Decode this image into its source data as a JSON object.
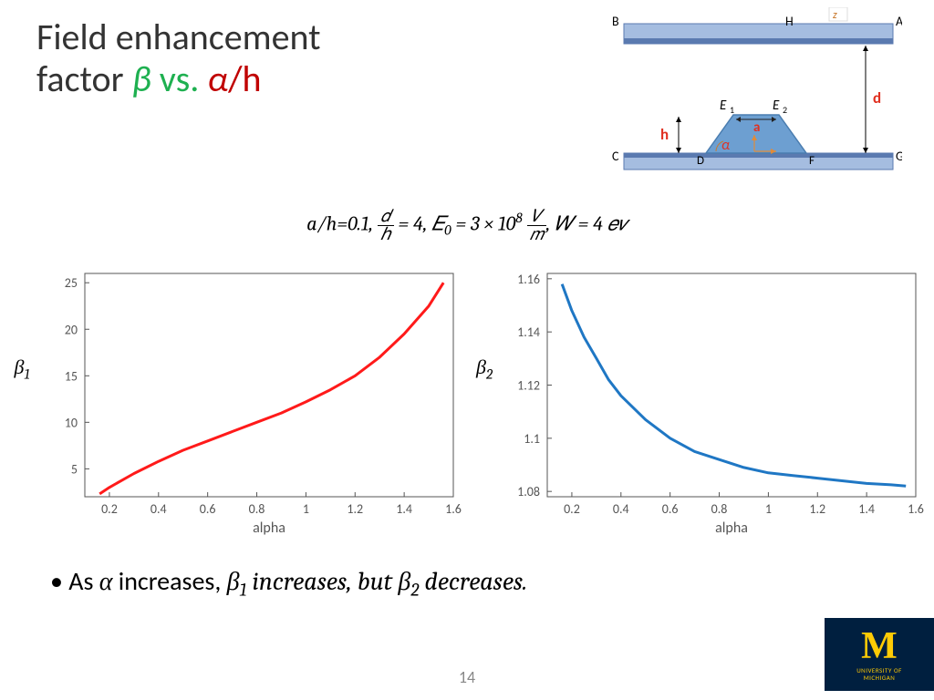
{
  "title": {
    "line1": "Field enhancement",
    "line2_factor": "factor",
    "beta": "β",
    "vs": " vs.",
    "alpha": "α",
    "slash_h": "/h"
  },
  "params_text": "a/h=0.1, d/h = 4, E₀ = 3 × 10⁸ V/m, W = 4 eV",
  "diagram": {
    "labels": {
      "A": "A",
      "B": "B",
      "C": "C",
      "D": "D",
      "F": "F",
      "G": "G",
      "H": "H",
      "E1": "E",
      "E2": "E",
      "h": "h",
      "d": "d",
      "a": "a",
      "alpha": "α"
    },
    "colors": {
      "bar_fill": "#a5bde0",
      "bar_stroke": "#5a7ab0",
      "electrode_fill": "#a5bde0",
      "electrode_stroke": "#5a7ab0",
      "protrusion_fill": "#6d9fd1",
      "protrusion_stroke": "#4a7db0",
      "red_text": "#e03020",
      "label_text": "#000000"
    }
  },
  "chart_left": {
    "type": "line",
    "ylabel_sym": "β",
    "ylabel_sub": "1",
    "xlabel": "alpha",
    "line_color": "#ff1a1a",
    "line_width": 3,
    "border_color": "#555555",
    "bg_color": "#ffffff",
    "tick_color": "#555555",
    "tick_fontsize": 14,
    "label_fontsize": 16,
    "xlim": [
      0.1,
      1.6
    ],
    "ylim": [
      2,
      26
    ],
    "xticks": [
      0.2,
      0.4,
      0.6,
      0.8,
      1.0,
      1.2,
      1.4,
      1.6
    ],
    "yticks": [
      5,
      10,
      15,
      20,
      25
    ],
    "data_x": [
      0.16,
      0.2,
      0.3,
      0.4,
      0.5,
      0.6,
      0.7,
      0.8,
      0.9,
      1.0,
      1.1,
      1.2,
      1.3,
      1.4,
      1.5,
      1.56
    ],
    "data_y": [
      2.3,
      3.0,
      4.5,
      5.8,
      7.0,
      8.0,
      9.0,
      10.0,
      11.0,
      12.2,
      13.5,
      15.0,
      17.0,
      19.5,
      22.5,
      25.0
    ]
  },
  "chart_right": {
    "type": "line",
    "ylabel_sym": "β",
    "ylabel_sub": "2",
    "xlabel": "alpha",
    "line_color": "#1f77c4",
    "line_width": 3,
    "border_color": "#555555",
    "bg_color": "#ffffff",
    "tick_color": "#555555",
    "tick_fontsize": 14,
    "label_fontsize": 16,
    "xlim": [
      0.1,
      1.6
    ],
    "ylim": [
      1.078,
      1.162
    ],
    "xticks": [
      0.2,
      0.4,
      0.6,
      0.8,
      1.0,
      1.2,
      1.4,
      1.6
    ],
    "yticks": [
      1.08,
      1.1,
      1.12,
      1.14,
      1.16
    ],
    "data_x": [
      0.16,
      0.2,
      0.25,
      0.3,
      0.35,
      0.4,
      0.5,
      0.6,
      0.7,
      0.8,
      0.9,
      1.0,
      1.1,
      1.2,
      1.3,
      1.4,
      1.5,
      1.56
    ],
    "data_y": [
      1.158,
      1.148,
      1.138,
      1.13,
      1.122,
      1.116,
      1.107,
      1.1,
      1.095,
      1.092,
      1.089,
      1.087,
      1.086,
      1.085,
      1.084,
      1.083,
      1.0825,
      1.082
    ]
  },
  "bullet_text": {
    "prefix": "As ",
    "alpha": "α",
    "mid": " increases, ",
    "b1": "β",
    "b1sub": "1",
    "inc": " increases, but ",
    "b2": "β",
    "b2sub": "2",
    "dec": " decreases."
  },
  "page_number": "14",
  "logo": {
    "M": "M",
    "text_top": "UNIVERSITY OF",
    "text_bot": "MICHIGAN"
  }
}
